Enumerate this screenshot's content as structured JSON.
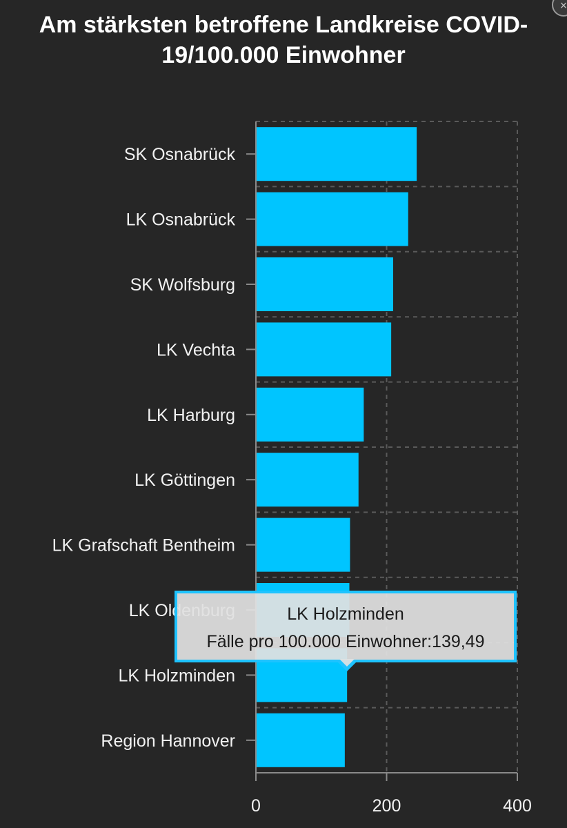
{
  "chart_data": {
    "type": "bar",
    "orientation": "horizontal",
    "title_lines": [
      "Am stärksten betroffene Landkreise COVID-",
      "19/100.000 Einwohner"
    ],
    "categories": [
      "SK Osnabrück",
      "LK Osnabrück",
      "SK Wolfsburg",
      "LK Vechta",
      "LK Harburg",
      "LK Göttingen",
      "LK Grafschaft Bentheim",
      "LK Oldenburg",
      "LK Holzminden",
      "Region Hannover"
    ],
    "values": [
      246,
      233,
      210,
      207,
      165,
      157,
      144,
      143,
      139.49,
      136
    ],
    "xlim": [
      0,
      400
    ],
    "xticks": [
      0,
      200,
      400
    ],
    "grid": true,
    "bar_color": "#00c5ff"
  },
  "tooltip": {
    "title": "LK Holzminden",
    "text": "Fälle pro 100.000 Einwohner:139,49"
  },
  "close_button": {
    "label": "×"
  }
}
